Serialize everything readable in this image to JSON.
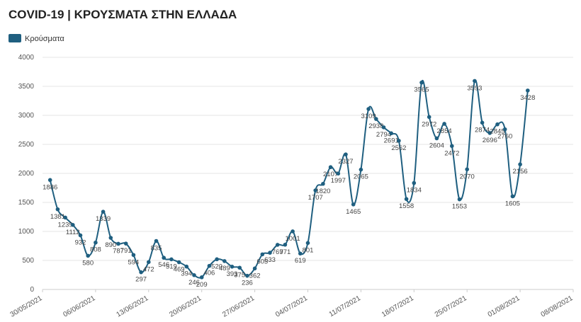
{
  "chart_data": {
    "type": "line",
    "title": "COVID-19 | ΚΡΟΥΣΜΑΤΑ ΣΤΗΝ ΕΛΛΑΔΑ",
    "x": [
      "31/05/2021",
      "01/06/2021",
      "02/06/2021",
      "03/06/2021",
      "04/06/2021",
      "05/06/2021",
      "06/06/2021",
      "07/06/2021",
      "08/06/2021",
      "09/06/2021",
      "10/06/2021",
      "11/06/2021",
      "12/06/2021",
      "13/06/2021",
      "14/06/2021",
      "15/06/2021",
      "16/06/2021",
      "17/06/2021",
      "18/06/2021",
      "19/06/2021",
      "20/06/2021",
      "21/06/2021",
      "22/06/2021",
      "23/06/2021",
      "24/06/2021",
      "25/06/2021",
      "26/06/2021",
      "27/06/2021",
      "28/06/2021",
      "29/06/2021",
      "30/06/2021",
      "01/07/2021",
      "02/07/2021",
      "03/07/2021",
      "04/07/2021",
      "05/07/2021",
      "06/07/2021",
      "07/07/2021",
      "08/07/2021",
      "09/07/2021",
      "10/07/2021",
      "11/07/2021",
      "12/07/2021",
      "13/07/2021",
      "14/07/2021",
      "15/07/2021",
      "16/07/2021",
      "17/07/2021",
      "18/07/2021",
      "19/07/2021",
      "20/07/2021",
      "21/07/2021",
      "22/07/2021",
      "23/07/2021",
      "24/07/2021",
      "25/07/2021",
      "26/07/2021",
      "27/07/2021",
      "28/07/2021",
      "29/07/2021",
      "30/07/2021",
      "31/07/2021",
      "01/08/2021",
      "02/08/2021"
    ],
    "series": [
      {
        "name": "Κρούσματα",
        "color": "#1f5f80",
        "values": [
          1886,
          1381,
          1239,
          1112,
          932,
          580,
          808,
          1339,
          890,
          787,
          791,
          594,
          297,
          472,
          835,
          546,
          519,
          469,
          394,
          246,
          209,
          406,
          520,
          489,
          393,
          375,
          236,
          362,
          605,
          633,
          769,
          771,
          1001,
          619,
          801,
          1707,
          1820,
          2107,
          1997,
          2327,
          1465,
          2065,
          3109,
          2938,
          2794,
          2691,
          2562,
          1558,
          1834,
          3565,
          2972,
          2604,
          2854,
          2472,
          1553,
          2070,
          3593,
          2874,
          2696,
          2845,
          2760,
          1605,
          2156,
          3428
        ]
      }
    ],
    "xlim": [
      "30/05/2021",
      "08/08/2021"
    ],
    "xticks": [
      "30/05/2021",
      "06/06/2021",
      "13/06/2021",
      "20/06/2021",
      "27/06/2021",
      "04/07/2021",
      "11/07/2021",
      "18/07/2021",
      "25/07/2021",
      "01/08/2021",
      "08/08/2021"
    ],
    "ylim": [
      0,
      4000
    ],
    "yticks": [
      0,
      500,
      1000,
      1500,
      2000,
      2500,
      3000,
      3500,
      4000
    ],
    "grid": true,
    "legend": "top-left"
  }
}
